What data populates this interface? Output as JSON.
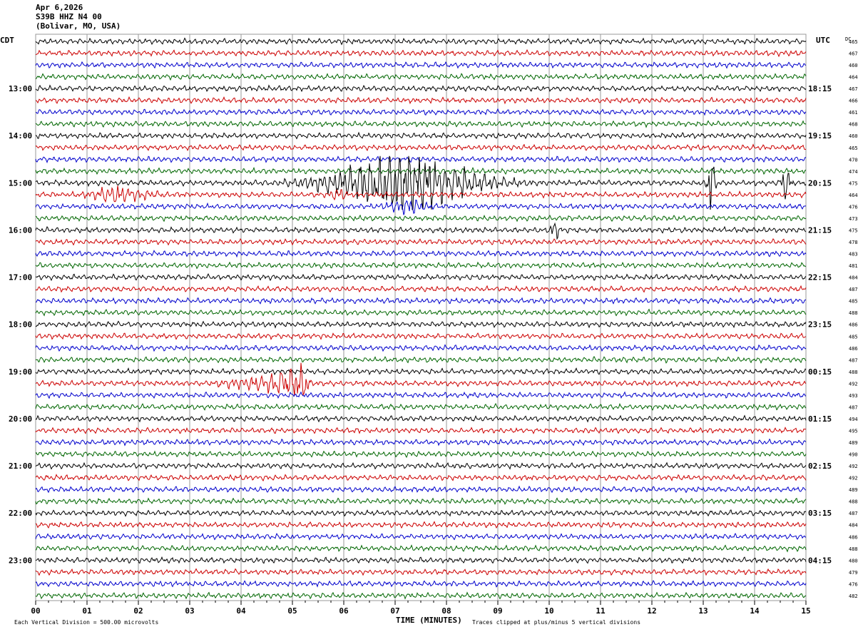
{
  "header": {
    "date": "Apr 6,2026",
    "station": "S39B HHZ N4 00",
    "location": "(Bolivar, MO, USA)"
  },
  "axes": {
    "left_label": "CDT",
    "right_label": "UTC",
    "dc_label": "DC",
    "x_title": "TIME (MINUTES)"
  },
  "footer": {
    "scale_note": "Each Vertical Division =  500.00 microvolts",
    "clip_note": "Traces clipped at plus/minus 5 vertical divisions"
  },
  "colors": {
    "cycle": [
      "#000000",
      "#cc0000",
      "#0000cc",
      "#006600"
    ],
    "grid": "#999999"
  },
  "chart_data": {
    "type": "line",
    "title": "",
    "xlabel": "TIME (MINUTES)",
    "xlim": [
      0,
      15
    ],
    "x_ticks": [
      "00",
      "01",
      "02",
      "03",
      "04",
      "05",
      "06",
      "07",
      "08",
      "09",
      "10",
      "11",
      "12",
      "13",
      "14",
      "15"
    ],
    "cdt_hour_labels": [
      "13:00",
      "14:00",
      "15:00",
      "16:00",
      "17:00",
      "18:00",
      "19:00",
      "20:00",
      "21:00",
      "22:00",
      "23:00"
    ],
    "utc_hour_labels": [
      "18:15",
      "19:15",
      "20:15",
      "21:15",
      "22:15",
      "23:15",
      "00:15",
      "01:15",
      "02:15",
      "03:15",
      "04:15"
    ],
    "trace_count": 48,
    "dc_offsets": [
      465,
      467,
      460,
      464,
      467,
      466,
      461,
      468,
      460,
      465,
      470,
      474,
      475,
      464,
      476,
      473,
      475,
      478,
      483,
      481,
      484,
      487,
      485,
      488,
      486,
      485,
      486,
      487,
      488,
      492,
      493,
      487,
      494,
      495,
      489,
      490,
      492,
      492,
      489,
      488,
      487,
      484,
      486,
      488,
      480,
      479,
      476,
      482
    ],
    "events": [
      {
        "trace": 12,
        "start_min": 4.3,
        "peak_min": 7.2,
        "end_min": 10.0,
        "amp": 4.5
      },
      {
        "trace": 12,
        "start_min": 13.0,
        "peak_min": 13.15,
        "end_min": 13.3,
        "amp": 5
      },
      {
        "trace": 12,
        "start_min": 14.4,
        "peak_min": 14.6,
        "end_min": 14.8,
        "amp": 2.5
      },
      {
        "trace": 13,
        "start_min": 0.7,
        "peak_min": 1.5,
        "end_min": 2.8,
        "amp": 1.2
      },
      {
        "trace": 13,
        "start_min": 5.7,
        "peak_min": 5.9,
        "end_min": 6.1,
        "amp": 1.2
      },
      {
        "trace": 14,
        "start_min": 6.5,
        "peak_min": 7.2,
        "end_min": 8.0,
        "amp": 1.0
      },
      {
        "trace": 16,
        "start_min": 9.95,
        "peak_min": 10.1,
        "end_min": 10.3,
        "amp": 1.3
      },
      {
        "trace": 29,
        "start_min": 2.9,
        "peak_min": 5.25,
        "end_min": 5.4,
        "amp": 2.0
      }
    ]
  }
}
